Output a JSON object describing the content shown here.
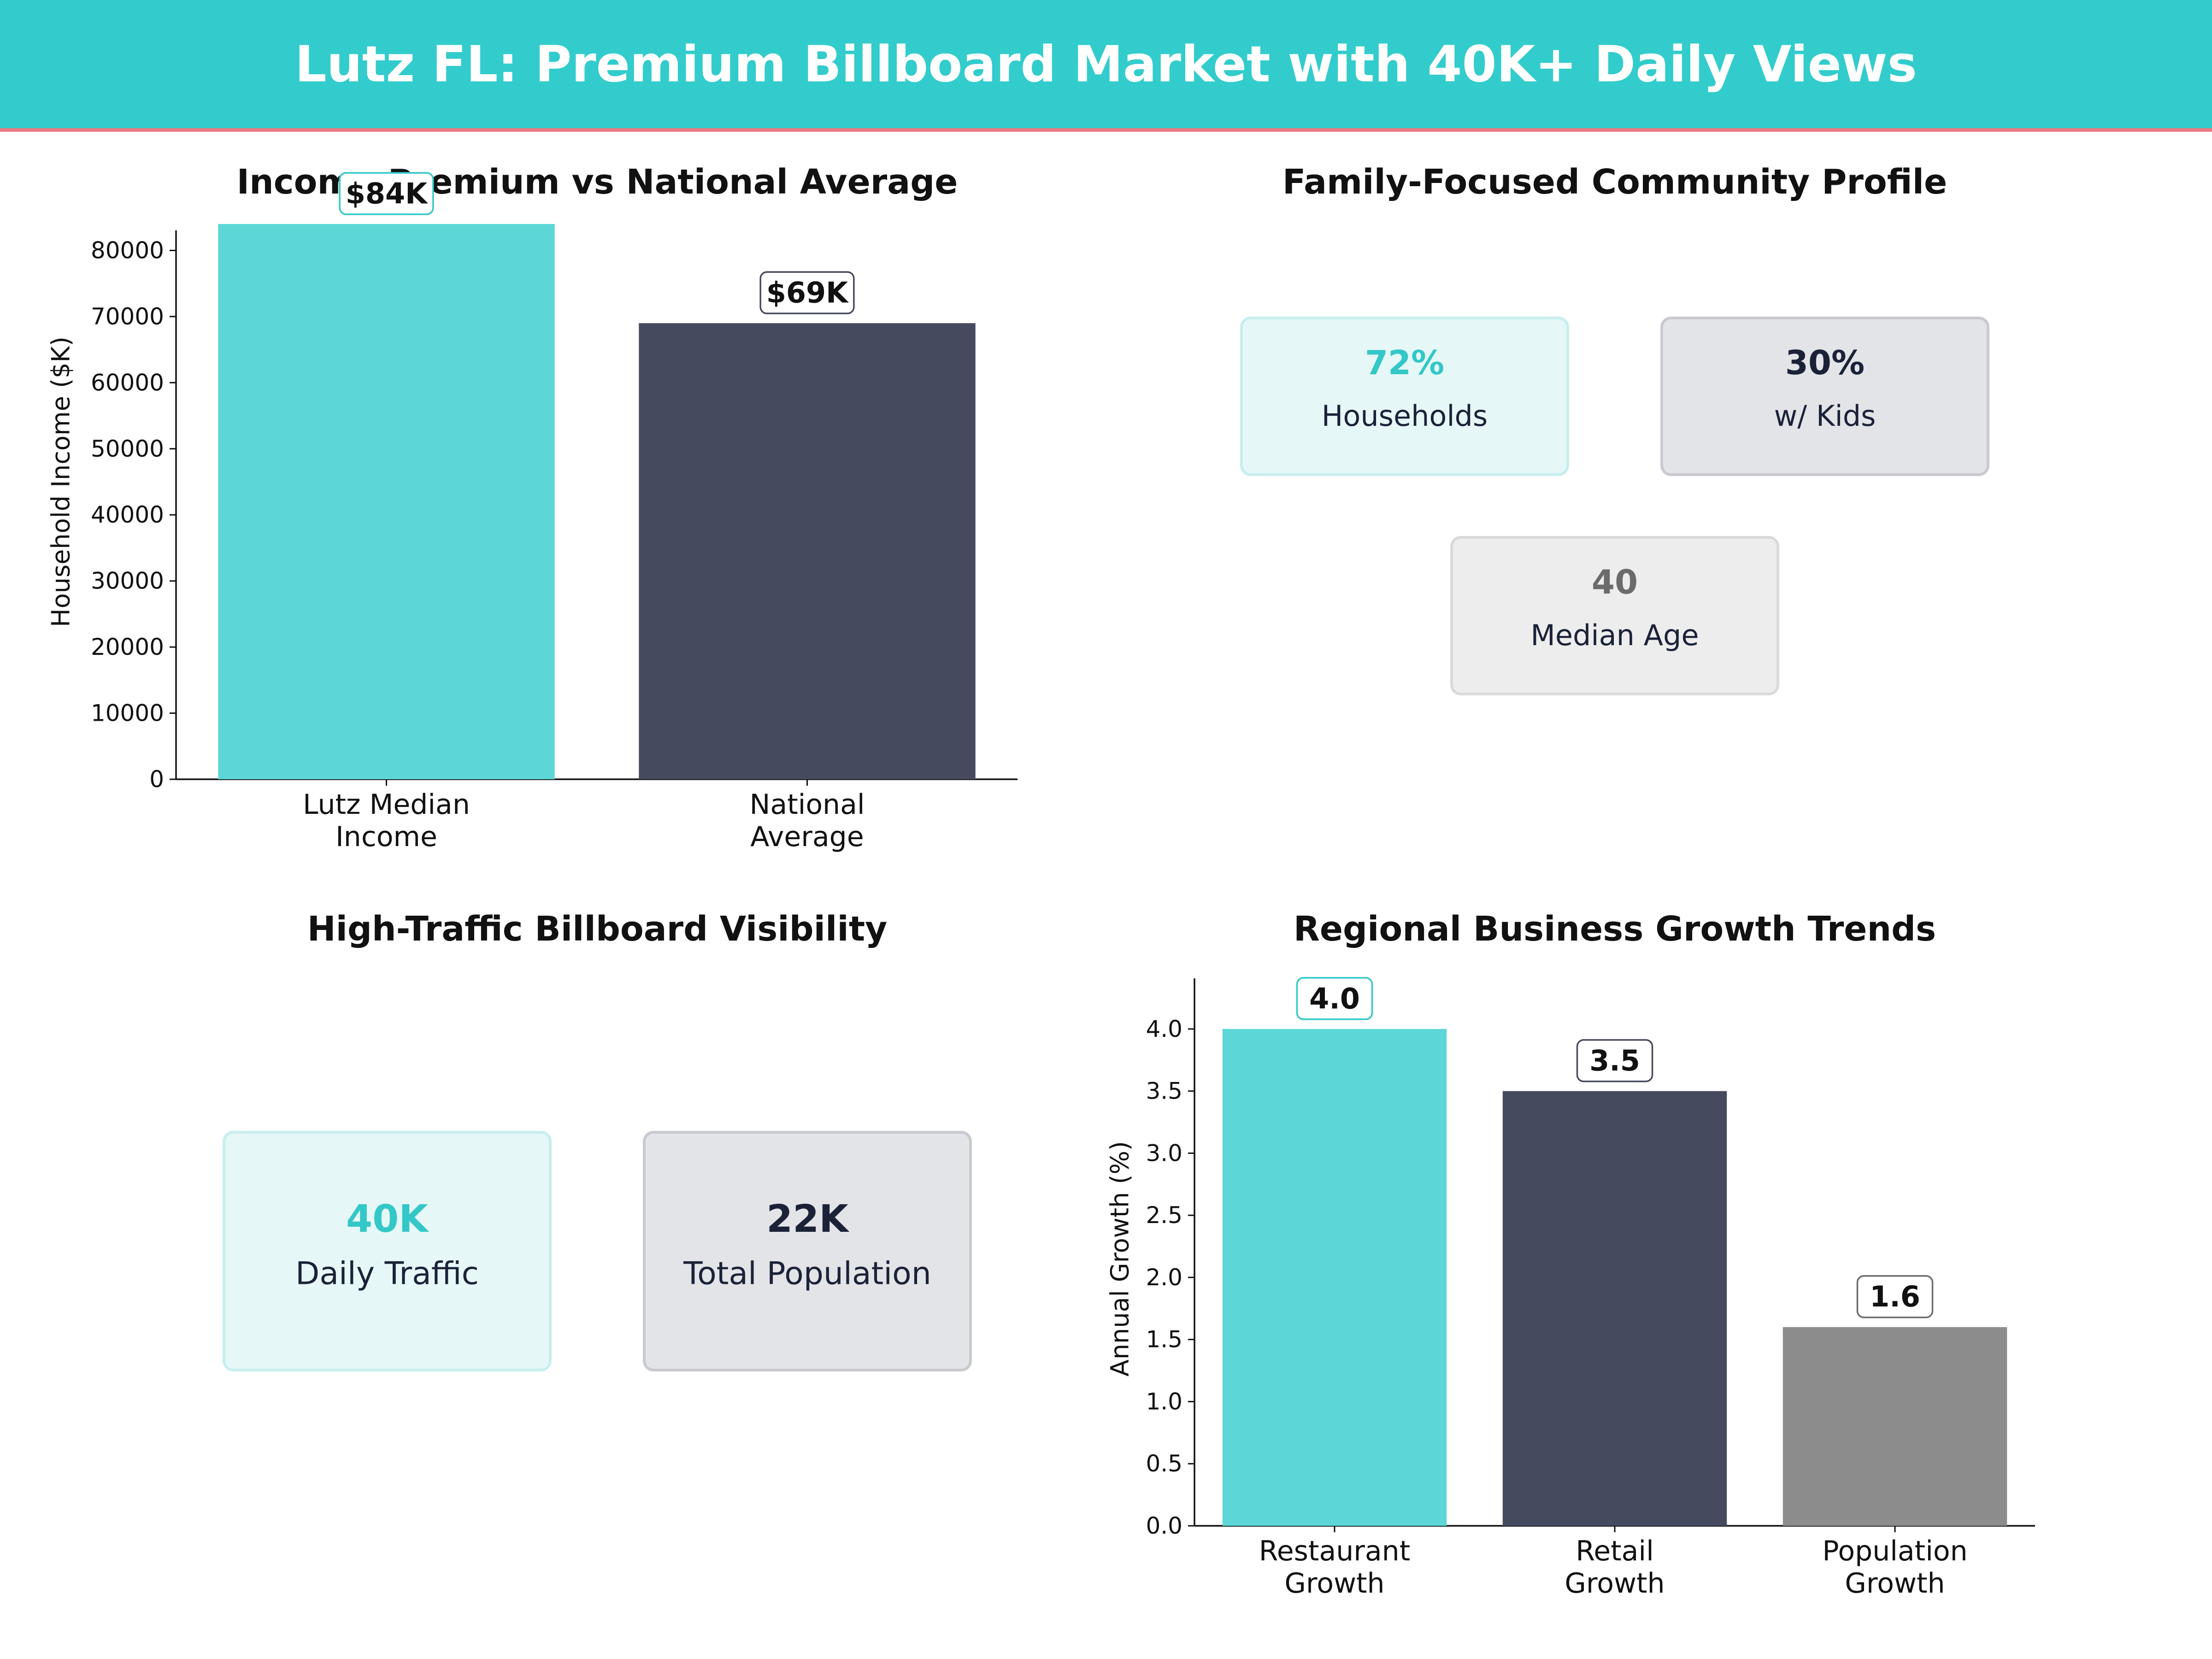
{
  "header": {
    "title": "Lutz FL: Premium Billboard Market with 40K+ Daily Views",
    "bg_color": "#33cccc",
    "rule_color": "#e87a85"
  },
  "panels": {
    "income": {
      "title": "Income Premium vs National Average"
    },
    "family": {
      "title": "Family-Focused Community Profile"
    },
    "traffic": {
      "title": "High-Traffic Billboard Visibility"
    },
    "growth": {
      "title": "Regional Business Growth Trends"
    }
  },
  "family_cards": [
    {
      "value": "72%",
      "label": "Households",
      "value_color": "#33c7c7",
      "fill": "#e5f7f7",
      "stroke": "#c8eeee"
    },
    {
      "value": "30%",
      "label": "w/ Kids",
      "value_color": "#1b2238",
      "fill": "#e3e4e8",
      "stroke": "#c9cacf"
    },
    {
      "value": "40",
      "label": "Median Age",
      "value_color": "#6b6b6b",
      "fill": "#ededed",
      "stroke": "#dadada"
    }
  ],
  "traffic_cards": [
    {
      "value": "40K",
      "label": "Daily Traffic",
      "value_color": "#33c7c7",
      "fill": "#e5f7f7",
      "stroke": "#c8eeee"
    },
    {
      "value": "22K",
      "label": "Total Population",
      "value_color": "#1b2238",
      "fill": "#e3e4e8",
      "stroke": "#c9cacf"
    }
  ],
  "chart_data": [
    {
      "type": "bar",
      "title": "Income Premium vs National Average",
      "xlabel": "",
      "ylabel": "Household Income ($K)",
      "categories": [
        [
          "Lutz Median",
          "Income"
        ],
        [
          "National",
          "Average"
        ]
      ],
      "values": [
        84000,
        69000
      ],
      "data_labels": [
        "$84K",
        "$69K"
      ],
      "colors": [
        "#5cd6d6",
        "#464a5f"
      ],
      "label_box_colors": [
        "#33c7c7",
        "#464a5f"
      ],
      "ylim": [
        0,
        90000
      ],
      "yticks": [
        0,
        10000,
        20000,
        30000,
        40000,
        50000,
        60000,
        70000,
        80000
      ],
      "ytick_labels": [
        "0",
        "10000",
        "20000",
        "30000",
        "40000",
        "50000",
        "60000",
        "70000",
        "80000"
      ],
      "grid": false
    },
    {
      "type": "bar",
      "title": "Regional Business Growth Trends",
      "xlabel": "",
      "ylabel": "Annual Growth (%)",
      "categories": [
        [
          "Restaurant",
          "Growth"
        ],
        [
          "Retail",
          "Growth"
        ],
        [
          "Population",
          "Growth"
        ]
      ],
      "values": [
        4.0,
        3.5,
        1.6
      ],
      "data_labels": [
        "4.0",
        "3.5",
        "1.6"
      ],
      "colors": [
        "#5cd6d6",
        "#464a5f",
        "#8c8c8c"
      ],
      "label_box_colors": [
        "#33c7c7",
        "#464a5f",
        "#6b6b6b"
      ],
      "ylim": [
        0,
        4.3
      ],
      "yticks": [
        0,
        0.5,
        1.0,
        1.5,
        2.0,
        2.5,
        3.0,
        3.5,
        4.0
      ],
      "ytick_labels": [
        "0.0",
        "0.5",
        "1.0",
        "1.5",
        "2.0",
        "2.5",
        "3.0",
        "3.5",
        "4.0"
      ],
      "grid": false
    }
  ]
}
